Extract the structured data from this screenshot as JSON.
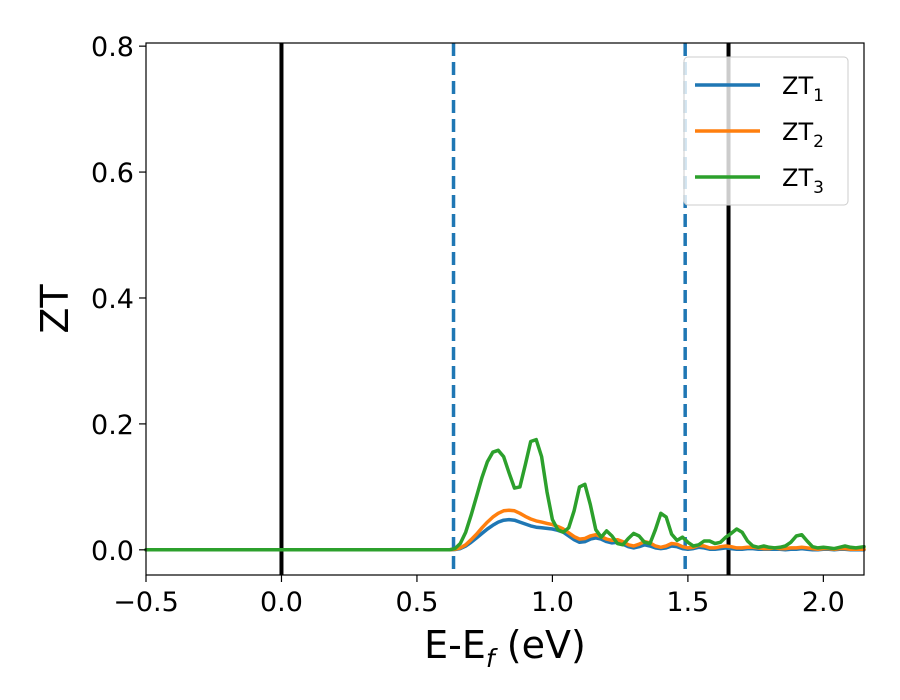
{
  "chart_data": {
    "type": "line",
    "title": "",
    "xlabel": "E-E",
    "xlabel_sub": "f",
    "xlabel_unit": " (eV)",
    "ylabel": "ZT",
    "xlim": [
      -0.5,
      2.15
    ],
    "ylim": [
      -0.04,
      0.805
    ],
    "xticks": [
      -0.5,
      0.0,
      0.5,
      1.0,
      1.5,
      2.0
    ],
    "xtick_labels": [
      "−0.5",
      "0.0",
      "0.5",
      "1.0",
      "1.5",
      "2.0"
    ],
    "yticks": [
      0.0,
      0.2,
      0.4,
      0.6,
      0.8
    ],
    "ytick_labels": [
      "0.0",
      "0.2",
      "0.4",
      "0.6",
      "0.8"
    ],
    "grid": false,
    "legend_position": "top-right",
    "vlines": [
      {
        "x": 0.0,
        "style": "solid",
        "color": "#000000"
      },
      {
        "x": 1.65,
        "style": "solid",
        "color": "#000000"
      },
      {
        "x": 0.635,
        "style": "dashed",
        "color": "#1f77b4"
      },
      {
        "x": 1.49,
        "style": "dashed",
        "color": "#1f77b4"
      }
    ],
    "series": [
      {
        "name": "ZT",
        "sub": "1",
        "color": "#1f77b4",
        "x": [
          -0.5,
          0.6,
          0.62,
          0.64,
          0.66,
          0.68,
          0.7,
          0.72,
          0.74,
          0.76,
          0.78,
          0.8,
          0.82,
          0.84,
          0.86,
          0.88,
          0.9,
          0.92,
          0.94,
          0.96,
          0.98,
          1.0,
          1.02,
          1.04,
          1.06,
          1.08,
          1.1,
          1.12,
          1.14,
          1.16,
          1.18,
          1.2,
          1.22,
          1.24,
          1.26,
          1.28,
          1.3,
          1.32,
          1.34,
          1.36,
          1.38,
          1.4,
          1.42,
          1.44,
          1.46,
          1.48,
          1.5,
          1.52,
          1.54,
          1.56,
          1.58,
          1.6,
          1.62,
          1.64,
          1.66,
          1.68,
          1.7,
          1.72,
          1.74,
          1.76,
          1.78,
          1.8,
          1.82,
          1.84,
          1.86,
          1.88,
          1.9,
          1.92,
          1.94,
          1.96,
          1.98,
          2.0,
          2.02,
          2.04,
          2.06,
          2.08,
          2.1,
          2.12,
          2.15
        ],
        "y": [
          0.0,
          0.0,
          0.0,
          0.0005,
          0.002,
          0.006,
          0.012,
          0.019,
          0.026,
          0.033,
          0.039,
          0.044,
          0.047,
          0.048,
          0.047,
          0.044,
          0.041,
          0.038,
          0.036,
          0.035,
          0.034,
          0.033,
          0.031,
          0.028,
          0.022,
          0.016,
          0.012,
          0.013,
          0.017,
          0.019,
          0.017,
          0.013,
          0.011,
          0.012,
          0.009,
          0.005,
          0.003,
          0.005,
          0.008,
          0.006,
          0.003,
          0.002,
          0.003,
          0.006,
          0.005,
          0.002,
          0.001,
          0.002,
          0.004,
          0.003,
          0.001,
          0.001,
          0.002,
          0.003,
          0.002,
          0.001,
          0.001,
          0.002,
          0.002,
          0.001,
          0.001,
          0.001,
          0.001,
          0.001,
          0.0,
          0.001,
          0.001,
          0.002,
          0.001,
          0.0,
          0.0,
          0.001,
          0.001,
          0.0,
          0.001,
          0.001,
          0.0,
          0.0,
          0.0
        ]
      },
      {
        "name": "ZT",
        "sub": "2",
        "color": "#ff7f0e",
        "x": [
          -0.5,
          0.6,
          0.62,
          0.64,
          0.66,
          0.68,
          0.7,
          0.72,
          0.74,
          0.76,
          0.78,
          0.8,
          0.82,
          0.84,
          0.86,
          0.88,
          0.9,
          0.92,
          0.94,
          0.96,
          0.98,
          1.0,
          1.02,
          1.04,
          1.06,
          1.08,
          1.1,
          1.12,
          1.14,
          1.16,
          1.18,
          1.2,
          1.22,
          1.24,
          1.26,
          1.28,
          1.3,
          1.32,
          1.34,
          1.36,
          1.38,
          1.4,
          1.42,
          1.44,
          1.46,
          1.48,
          1.5,
          1.52,
          1.54,
          1.56,
          1.58,
          1.6,
          1.62,
          1.64,
          1.66,
          1.68,
          1.7,
          1.72,
          1.74,
          1.76,
          1.78,
          1.8,
          1.82,
          1.84,
          1.86,
          1.88,
          1.9,
          1.92,
          1.94,
          1.96,
          1.98,
          2.0,
          2.02,
          2.04,
          2.06,
          2.08,
          2.1,
          2.12,
          2.15
        ],
        "y": [
          0.0,
          0.0,
          0.0,
          0.0008,
          0.003,
          0.008,
          0.016,
          0.025,
          0.035,
          0.044,
          0.052,
          0.058,
          0.062,
          0.063,
          0.062,
          0.058,
          0.053,
          0.049,
          0.046,
          0.044,
          0.042,
          0.04,
          0.037,
          0.033,
          0.027,
          0.021,
          0.017,
          0.018,
          0.022,
          0.024,
          0.021,
          0.017,
          0.015,
          0.016,
          0.013,
          0.008,
          0.006,
          0.009,
          0.013,
          0.011,
          0.006,
          0.004,
          0.006,
          0.01,
          0.009,
          0.005,
          0.003,
          0.004,
          0.007,
          0.006,
          0.003,
          0.003,
          0.005,
          0.006,
          0.005,
          0.003,
          0.003,
          0.004,
          0.004,
          0.003,
          0.002,
          0.002,
          0.003,
          0.002,
          0.002,
          0.003,
          0.003,
          0.004,
          0.003,
          0.002,
          0.001,
          0.002,
          0.002,
          0.001,
          0.002,
          0.002,
          0.001,
          0.001,
          0.001
        ]
      },
      {
        "name": "ZT",
        "sub": "3",
        "color": "#2ca02c",
        "x": [
          -0.5,
          0.6,
          0.62,
          0.64,
          0.66,
          0.68,
          0.7,
          0.72,
          0.74,
          0.76,
          0.78,
          0.8,
          0.82,
          0.84,
          0.86,
          0.88,
          0.9,
          0.92,
          0.94,
          0.96,
          0.98,
          1.0,
          1.02,
          1.04,
          1.06,
          1.08,
          1.1,
          1.12,
          1.14,
          1.16,
          1.18,
          1.2,
          1.22,
          1.24,
          1.26,
          1.28,
          1.3,
          1.32,
          1.34,
          1.36,
          1.38,
          1.4,
          1.42,
          1.44,
          1.46,
          1.48,
          1.5,
          1.52,
          1.54,
          1.56,
          1.58,
          1.6,
          1.62,
          1.64,
          1.66,
          1.68,
          1.7,
          1.72,
          1.74,
          1.76,
          1.78,
          1.8,
          1.82,
          1.84,
          1.86,
          1.88,
          1.9,
          1.92,
          1.94,
          1.96,
          1.98,
          2.0,
          2.02,
          2.04,
          2.06,
          2.08,
          2.1,
          2.12,
          2.15
        ],
        "y": [
          0.0,
          0.0,
          0.0,
          0.002,
          0.01,
          0.028,
          0.055,
          0.085,
          0.115,
          0.14,
          0.155,
          0.158,
          0.148,
          0.122,
          0.098,
          0.1,
          0.135,
          0.172,
          0.175,
          0.148,
          0.092,
          0.048,
          0.032,
          0.028,
          0.035,
          0.062,
          0.1,
          0.104,
          0.072,
          0.032,
          0.02,
          0.03,
          0.022,
          0.01,
          0.008,
          0.018,
          0.026,
          0.022,
          0.012,
          0.01,
          0.032,
          0.058,
          0.052,
          0.025,
          0.015,
          0.02,
          0.012,
          0.006,
          0.008,
          0.014,
          0.014,
          0.01,
          0.012,
          0.02,
          0.026,
          0.033,
          0.028,
          0.014,
          0.006,
          0.004,
          0.006,
          0.004,
          0.003,
          0.004,
          0.006,
          0.012,
          0.022,
          0.024,
          0.014,
          0.005,
          0.003,
          0.004,
          0.003,
          0.002,
          0.004,
          0.006,
          0.004,
          0.003,
          0.005
        ]
      }
    ]
  }
}
